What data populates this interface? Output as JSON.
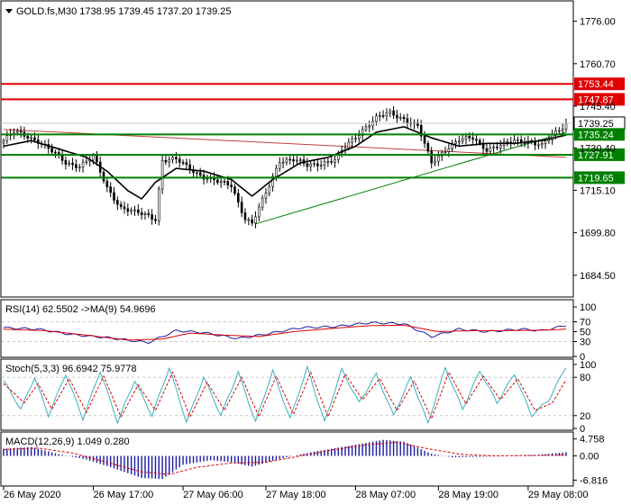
{
  "window": {
    "symbol_header": "GOLD.fs,M30  1738.95 1739.45 1737.20 1739.25"
  },
  "colors": {
    "background": "#ffffff",
    "price_line": "#000000",
    "ma_line": "#000000",
    "level_red": "#e00000",
    "level_green": "#008000",
    "trend_red": "#c04040",
    "trend_green": "#008000",
    "current_label_bg": "#ffffff",
    "grid": "#c8c8c8",
    "rsi_line": "#1a1aa0",
    "rsi_ma": "#e00000",
    "stoch_main": "#3ab0c0",
    "stoch_signal": "#e00000",
    "macd_hist": "#1a1aa0",
    "macd_signal": "#e00000"
  },
  "price_axis": {
    "ticks": [
      "1776.00",
      "1760.70",
      "1745.40",
      "1730.40",
      "1715.10",
      "1699.80",
      "1684.50"
    ],
    "tick_values": [
      1776.0,
      1760.7,
      1745.4,
      1730.4,
      1715.1,
      1699.8,
      1684.5
    ],
    "ylim": [
      1677,
      1783
    ]
  },
  "levels": [
    {
      "value": 1753.44,
      "label": "1753.44",
      "color": "red"
    },
    {
      "value": 1747.87,
      "label": "1747.87",
      "color": "red"
    },
    {
      "value": 1739.25,
      "label": "1739.25",
      "color": "current"
    },
    {
      "value": 1735.24,
      "label": "1735.24",
      "color": "green"
    },
    {
      "value": 1727.91,
      "label": "1727.91",
      "color": "green"
    },
    {
      "value": 1719.65,
      "label": "1719.65",
      "color": "green"
    }
  ],
  "time_axis": {
    "labels": [
      "26 May 2020",
      "26 May 17:00",
      "27 May 06:00",
      "27 May 18:00",
      "28 May 07:00",
      "28 May 19:00",
      "29 May 08:00"
    ],
    "label_index": [
      0,
      26,
      52,
      76,
      102,
      126,
      152
    ]
  },
  "chart_data": {
    "type": "line",
    "bar_count": 164,
    "price_anchors": [
      [
        0,
        1733
      ],
      [
        3,
        1736
      ],
      [
        6,
        1735
      ],
      [
        10,
        1733
      ],
      [
        14,
        1729
      ],
      [
        18,
        1725
      ],
      [
        22,
        1724
      ],
      [
        26,
        1727
      ],
      [
        30,
        1716
      ],
      [
        34,
        1709
      ],
      [
        38,
        1707
      ],
      [
        42,
        1706
      ],
      [
        44,
        1705
      ],
      [
        46,
        1726
      ],
      [
        50,
        1726
      ],
      [
        54,
        1723
      ],
      [
        58,
        1720
      ],
      [
        62,
        1718
      ],
      [
        66,
        1717
      ],
      [
        70,
        1705
      ],
      [
        72,
        1703
      ],
      [
        76,
        1714
      ],
      [
        80,
        1726
      ],
      [
        84,
        1726
      ],
      [
        88,
        1724
      ],
      [
        92,
        1725
      ],
      [
        96,
        1726
      ],
      [
        100,
        1732
      ],
      [
        104,
        1737
      ],
      [
        108,
        1741
      ],
      [
        112,
        1743
      ],
      [
        116,
        1741
      ],
      [
        120,
        1738
      ],
      [
        124,
        1725
      ],
      [
        128,
        1730
      ],
      [
        132,
        1733
      ],
      [
        136,
        1734
      ],
      [
        140,
        1730
      ],
      [
        144,
        1731
      ],
      [
        148,
        1733
      ],
      [
        152,
        1733
      ],
      [
        156,
        1731
      ],
      [
        160,
        1736
      ],
      [
        163,
        1739.25
      ]
    ],
    "ma_anchors": [
      [
        0,
        1731
      ],
      [
        8,
        1733
      ],
      [
        16,
        1730
      ],
      [
        24,
        1727
      ],
      [
        30,
        1722
      ],
      [
        36,
        1715
      ],
      [
        40,
        1712
      ],
      [
        44,
        1718
      ],
      [
        50,
        1723
      ],
      [
        58,
        1722
      ],
      [
        66,
        1719
      ],
      [
        72,
        1713
      ],
      [
        78,
        1719
      ],
      [
        86,
        1725
      ],
      [
        94,
        1727
      ],
      [
        102,
        1731
      ],
      [
        108,
        1736
      ],
      [
        116,
        1738
      ],
      [
        124,
        1734
      ],
      [
        132,
        1731
      ],
      [
        140,
        1732
      ],
      [
        148,
        1732
      ],
      [
        156,
        1733
      ],
      [
        163,
        1735
      ]
    ],
    "trendline_red": [
      [
        0,
        1737
      ],
      [
        163,
        1727
      ]
    ],
    "trendline_green": [
      [
        73,
        1703
      ],
      [
        163,
        1736
      ]
    ],
    "rsi": {
      "label": "RSI(14) 62.5502  ->MA(9) 54.9696",
      "ticks": [
        "100",
        "70",
        "50",
        "30",
        "0"
      ],
      "tick_values": [
        100,
        70,
        50,
        30,
        0
      ],
      "levels": [
        70,
        30
      ],
      "anchors": [
        [
          0,
          58
        ],
        [
          10,
          55
        ],
        [
          20,
          44
        ],
        [
          30,
          38
        ],
        [
          42,
          28
        ],
        [
          50,
          52
        ],
        [
          58,
          48
        ],
        [
          68,
          36
        ],
        [
          76,
          45
        ],
        [
          86,
          58
        ],
        [
          96,
          60
        ],
        [
          106,
          68
        ],
        [
          116,
          66
        ],
        [
          124,
          40
        ],
        [
          132,
          55
        ],
        [
          140,
          50
        ],
        [
          150,
          55
        ],
        [
          156,
          52
        ],
        [
          163,
          62.55
        ]
      ],
      "ma_anchors": [
        [
          0,
          55
        ],
        [
          12,
          52
        ],
        [
          24,
          43
        ],
        [
          36,
          33
        ],
        [
          46,
          35
        ],
        [
          54,
          47
        ],
        [
          64,
          43
        ],
        [
          74,
          40
        ],
        [
          84,
          50
        ],
        [
          96,
          57
        ],
        [
          106,
          62
        ],
        [
          116,
          63
        ],
        [
          126,
          50
        ],
        [
          136,
          52
        ],
        [
          146,
          52
        ],
        [
          156,
          53
        ],
        [
          163,
          54.97
        ]
      ]
    },
    "stoch": {
      "label": "Stoch(5,3,3) 96.6942 75.9778",
      "ticks": [
        "100",
        "80",
        "20",
        "0"
      ],
      "tick_values": [
        100,
        80,
        20,
        0
      ],
      "levels": [
        80,
        20
      ],
      "anchors": [
        [
          0,
          75
        ],
        [
          5,
          30
        ],
        [
          9,
          80
        ],
        [
          13,
          20
        ],
        [
          18,
          85
        ],
        [
          23,
          15
        ],
        [
          28,
          90
        ],
        [
          33,
          10
        ],
        [
          38,
          75
        ],
        [
          43,
          20
        ],
        [
          48,
          95
        ],
        [
          53,
          10
        ],
        [
          58,
          80
        ],
        [
          63,
          20
        ],
        [
          68,
          88
        ],
        [
          73,
          10
        ],
        [
          78,
          90
        ],
        [
          83,
          15
        ],
        [
          88,
          95
        ],
        [
          93,
          10
        ],
        [
          98,
          92
        ],
        [
          103,
          40
        ],
        [
          108,
          85
        ],
        [
          113,
          20
        ],
        [
          118,
          80
        ],
        [
          123,
          8
        ],
        [
          128,
          95
        ],
        [
          133,
          30
        ],
        [
          138,
          90
        ],
        [
          143,
          40
        ],
        [
          148,
          85
        ],
        [
          153,
          20
        ],
        [
          158,
          45
        ],
        [
          163,
          96.69
        ]
      ],
      "signal_anchors": [
        [
          0,
          70
        ],
        [
          6,
          40
        ],
        [
          10,
          70
        ],
        [
          14,
          30
        ],
        [
          19,
          78
        ],
        [
          24,
          25
        ],
        [
          29,
          82
        ],
        [
          34,
          18
        ],
        [
          39,
          68
        ],
        [
          44,
          28
        ],
        [
          49,
          88
        ],
        [
          54,
          18
        ],
        [
          59,
          72
        ],
        [
          64,
          28
        ],
        [
          69,
          80
        ],
        [
          74,
          18
        ],
        [
          79,
          82
        ],
        [
          84,
          22
        ],
        [
          89,
          88
        ],
        [
          94,
          18
        ],
        [
          99,
          85
        ],
        [
          104,
          45
        ],
        [
          109,
          78
        ],
        [
          114,
          28
        ],
        [
          119,
          74
        ],
        [
          124,
          15
        ],
        [
          129,
          88
        ],
        [
          134,
          38
        ],
        [
          139,
          82
        ],
        [
          144,
          45
        ],
        [
          149,
          78
        ],
        [
          154,
          28
        ],
        [
          159,
          40
        ],
        [
          163,
          75.98
        ]
      ]
    },
    "macd": {
      "label": "MACD(12,26,9) 1.049 0.280",
      "ticks": [
        "4.758",
        "0.00",
        "-6.816"
      ],
      "tick_values": [
        4.758,
        0.0,
        -6.816
      ],
      "ylim": [
        -8.2,
        6.2
      ],
      "hist_anchors": [
        [
          0,
          2.0
        ],
        [
          8,
          2.5
        ],
        [
          16,
          0.5
        ],
        [
          24,
          -1.0
        ],
        [
          32,
          -3.5
        ],
        [
          40,
          -6.2
        ],
        [
          46,
          -6.5
        ],
        [
          52,
          -2.5
        ],
        [
          60,
          -1.2
        ],
        [
          66,
          -1.8
        ],
        [
          72,
          -3.0
        ],
        [
          80,
          -0.8
        ],
        [
          90,
          1.2
        ],
        [
          100,
          2.8
        ],
        [
          110,
          4.5
        ],
        [
          116,
          4.0
        ],
        [
          124,
          0.6
        ],
        [
          130,
          -0.4
        ],
        [
          140,
          -0.2
        ],
        [
          150,
          0.2
        ],
        [
          156,
          0.4
        ],
        [
          163,
          1.05
        ]
      ],
      "signal_anchors": [
        [
          0,
          1.8
        ],
        [
          10,
          2.2
        ],
        [
          20,
          0.8
        ],
        [
          30,
          -1.8
        ],
        [
          40,
          -4.5
        ],
        [
          48,
          -5.2
        ],
        [
          56,
          -3.2
        ],
        [
          66,
          -2.0
        ],
        [
          76,
          -1.8
        ],
        [
          86,
          0.0
        ],
        [
          96,
          1.8
        ],
        [
          106,
          3.2
        ],
        [
          114,
          3.8
        ],
        [
          122,
          2.2
        ],
        [
          132,
          0.5
        ],
        [
          142,
          0.0
        ],
        [
          152,
          0.1
        ],
        [
          163,
          0.28
        ]
      ]
    }
  }
}
